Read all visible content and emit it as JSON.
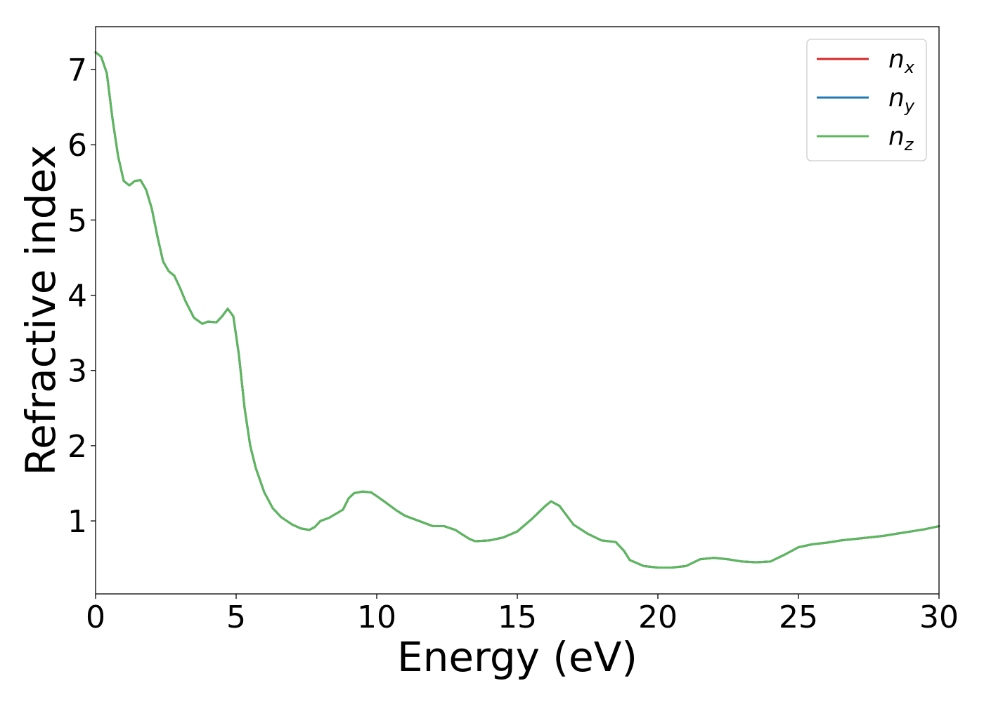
{
  "chart_data": {
    "type": "line",
    "title": "",
    "xlabel": "Energy (eV)",
    "ylabel": "Refractive index",
    "xlim": [
      0,
      30
    ],
    "ylim": [
      0.03,
      7.57
    ],
    "x_ticks": [
      0,
      5,
      10,
      15,
      20,
      25,
      30
    ],
    "y_ticks": [
      1,
      2,
      3,
      4,
      5,
      6,
      7
    ],
    "grid": false,
    "legend_position": "top-right",
    "series": [
      {
        "name": "n",
        "subscript": "x",
        "color": "#d62728",
        "x": [
          0,
          0.2,
          0.4,
          0.6,
          0.8,
          1.0,
          1.2,
          1.4,
          1.6,
          1.8,
          2.0,
          2.2,
          2.4,
          2.6,
          2.8,
          3.0,
          3.2,
          3.5,
          3.8,
          4.0,
          4.3,
          4.5,
          4.7,
          4.9,
          5.1,
          5.3,
          5.5,
          5.7,
          6.0,
          6.3,
          6.6,
          7.0,
          7.3,
          7.6,
          7.8,
          8.0,
          8.3,
          8.8,
          9.0,
          9.2,
          9.5,
          9.8,
          10.0,
          10.3,
          10.7,
          11.0,
          11.5,
          12.0,
          12.4,
          12.8,
          13.0,
          13.3,
          13.5,
          14.0,
          14.5,
          15.0,
          15.5,
          16.0,
          16.2,
          16.5,
          17.0,
          17.5,
          18.0,
          18.5,
          18.8,
          19.0,
          19.5,
          20.0,
          20.5,
          21.0,
          21.5,
          22.0,
          22.5,
          23.0,
          23.5,
          24.0,
          24.5,
          25.0,
          25.5,
          26.0,
          26.5,
          27.0,
          27.5,
          28.0,
          28.5,
          29.0,
          29.5,
          30.0
        ],
        "y": [
          7.23,
          7.17,
          6.95,
          6.35,
          5.85,
          5.52,
          5.46,
          5.52,
          5.53,
          5.4,
          5.15,
          4.78,
          4.45,
          4.32,
          4.26,
          4.1,
          3.92,
          3.7,
          3.62,
          3.65,
          3.64,
          3.72,
          3.82,
          3.72,
          3.2,
          2.5,
          2.0,
          1.7,
          1.38,
          1.17,
          1.05,
          0.95,
          0.9,
          0.88,
          0.92,
          1.0,
          1.04,
          1.15,
          1.3,
          1.37,
          1.39,
          1.38,
          1.33,
          1.25,
          1.14,
          1.07,
          1.0,
          0.93,
          0.93,
          0.88,
          0.83,
          0.76,
          0.73,
          0.74,
          0.78,
          0.86,
          1.02,
          1.2,
          1.26,
          1.2,
          0.95,
          0.83,
          0.74,
          0.72,
          0.6,
          0.48,
          0.4,
          0.38,
          0.38,
          0.4,
          0.49,
          0.51,
          0.49,
          0.46,
          0.45,
          0.46,
          0.55,
          0.65,
          0.69,
          0.71,
          0.74,
          0.76,
          0.78,
          0.8,
          0.83,
          0.86,
          0.89,
          0.93
        ]
      },
      {
        "name": "n",
        "subscript": "y",
        "color": "#1f77b4",
        "x": [
          0,
          0.2,
          0.4,
          0.6,
          0.8,
          1.0,
          1.2,
          1.4,
          1.6,
          1.8,
          2.0,
          2.2,
          2.4,
          2.6,
          2.8,
          3.0,
          3.2,
          3.5,
          3.8,
          4.0,
          4.3,
          4.5,
          4.7,
          4.9,
          5.1,
          5.3,
          5.5,
          5.7,
          6.0,
          6.3,
          6.6,
          7.0,
          7.3,
          7.6,
          7.8,
          8.0,
          8.3,
          8.8,
          9.0,
          9.2,
          9.5,
          9.8,
          10.0,
          10.3,
          10.7,
          11.0,
          11.5,
          12.0,
          12.4,
          12.8,
          13.0,
          13.3,
          13.5,
          14.0,
          14.5,
          15.0,
          15.5,
          16.0,
          16.2,
          16.5,
          17.0,
          17.5,
          18.0,
          18.5,
          18.8,
          19.0,
          19.5,
          20.0,
          20.5,
          21.0,
          21.5,
          22.0,
          22.5,
          23.0,
          23.5,
          24.0,
          24.5,
          25.0,
          25.5,
          26.0,
          26.5,
          27.0,
          27.5,
          28.0,
          28.5,
          29.0,
          29.5,
          30.0
        ],
        "y": [
          7.23,
          7.17,
          6.95,
          6.35,
          5.85,
          5.52,
          5.46,
          5.52,
          5.53,
          5.4,
          5.15,
          4.78,
          4.45,
          4.32,
          4.26,
          4.1,
          3.92,
          3.7,
          3.62,
          3.65,
          3.64,
          3.72,
          3.82,
          3.72,
          3.2,
          2.5,
          2.0,
          1.7,
          1.38,
          1.17,
          1.05,
          0.95,
          0.9,
          0.88,
          0.92,
          1.0,
          1.04,
          1.15,
          1.3,
          1.37,
          1.39,
          1.38,
          1.33,
          1.25,
          1.14,
          1.07,
          1.0,
          0.93,
          0.93,
          0.88,
          0.83,
          0.76,
          0.73,
          0.74,
          0.78,
          0.86,
          1.02,
          1.2,
          1.26,
          1.2,
          0.95,
          0.83,
          0.74,
          0.72,
          0.6,
          0.48,
          0.4,
          0.38,
          0.38,
          0.4,
          0.49,
          0.51,
          0.49,
          0.46,
          0.45,
          0.46,
          0.55,
          0.65,
          0.69,
          0.71,
          0.74,
          0.76,
          0.78,
          0.8,
          0.83,
          0.86,
          0.89,
          0.93
        ]
      },
      {
        "name": "n",
        "subscript": "z",
        "color": "#5cb85c",
        "x": [
          0,
          0.2,
          0.4,
          0.6,
          0.8,
          1.0,
          1.2,
          1.4,
          1.6,
          1.8,
          2.0,
          2.2,
          2.4,
          2.6,
          2.8,
          3.0,
          3.2,
          3.5,
          3.8,
          4.0,
          4.3,
          4.5,
          4.7,
          4.9,
          5.1,
          5.3,
          5.5,
          5.7,
          6.0,
          6.3,
          6.6,
          7.0,
          7.3,
          7.6,
          7.8,
          8.0,
          8.3,
          8.8,
          9.0,
          9.2,
          9.5,
          9.8,
          10.0,
          10.3,
          10.7,
          11.0,
          11.5,
          12.0,
          12.4,
          12.8,
          13.0,
          13.3,
          13.5,
          14.0,
          14.5,
          15.0,
          15.5,
          16.0,
          16.2,
          16.5,
          17.0,
          17.5,
          18.0,
          18.5,
          18.8,
          19.0,
          19.5,
          20.0,
          20.5,
          21.0,
          21.5,
          22.0,
          22.5,
          23.0,
          23.5,
          24.0,
          24.5,
          25.0,
          25.5,
          26.0,
          26.5,
          27.0,
          27.5,
          28.0,
          28.5,
          29.0,
          29.5,
          30.0
        ],
        "y": [
          7.23,
          7.17,
          6.95,
          6.35,
          5.85,
          5.52,
          5.46,
          5.52,
          5.53,
          5.4,
          5.15,
          4.78,
          4.45,
          4.32,
          4.26,
          4.1,
          3.92,
          3.7,
          3.62,
          3.65,
          3.64,
          3.72,
          3.82,
          3.72,
          3.2,
          2.5,
          2.0,
          1.7,
          1.38,
          1.17,
          1.05,
          0.95,
          0.9,
          0.88,
          0.92,
          1.0,
          1.04,
          1.15,
          1.3,
          1.37,
          1.39,
          1.38,
          1.33,
          1.25,
          1.14,
          1.07,
          1.0,
          0.93,
          0.93,
          0.88,
          0.83,
          0.76,
          0.73,
          0.74,
          0.78,
          0.86,
          1.02,
          1.2,
          1.26,
          1.2,
          0.95,
          0.83,
          0.74,
          0.72,
          0.6,
          0.48,
          0.4,
          0.38,
          0.38,
          0.4,
          0.49,
          0.51,
          0.49,
          0.46,
          0.45,
          0.46,
          0.55,
          0.65,
          0.69,
          0.71,
          0.74,
          0.76,
          0.78,
          0.8,
          0.83,
          0.86,
          0.89,
          0.93
        ]
      }
    ]
  }
}
